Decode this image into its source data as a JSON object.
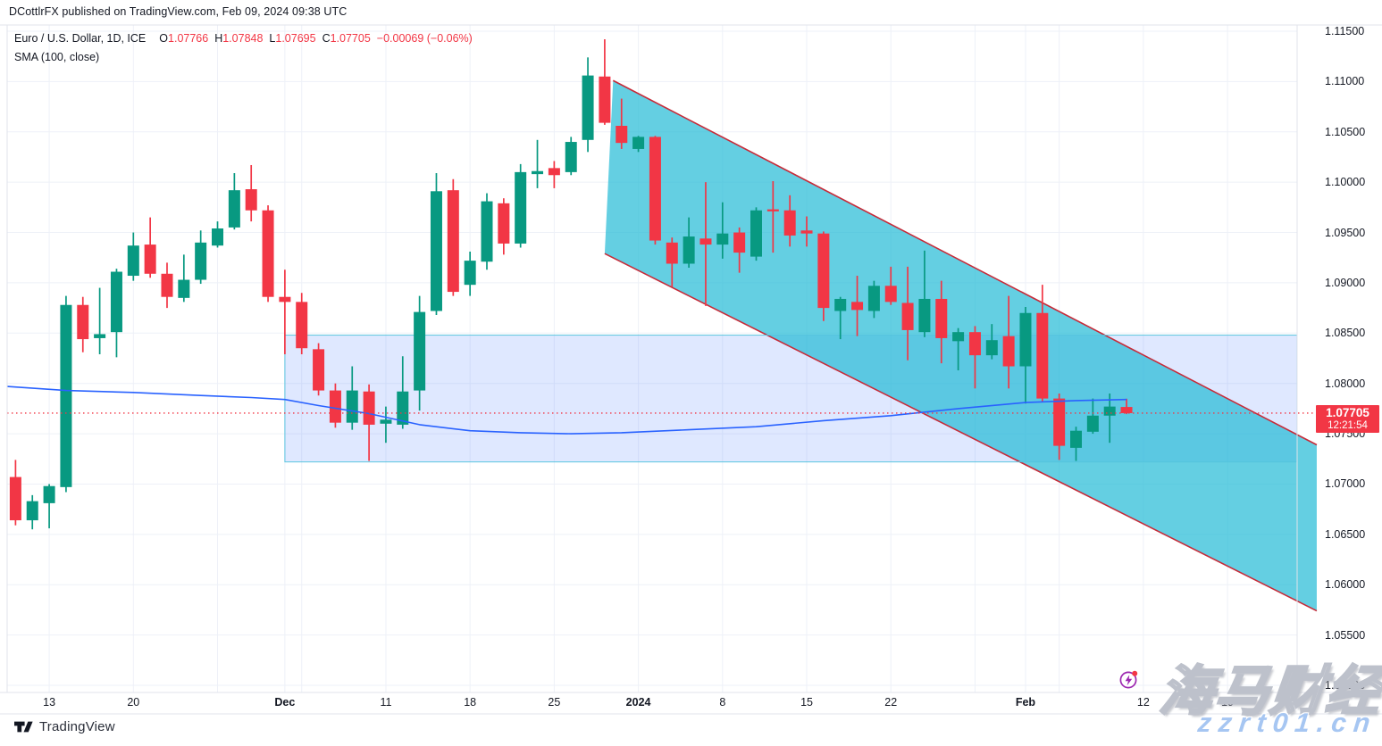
{
  "publish_bar": {
    "text": "DCottlrFX published on TradingView.com, Feb 09, 2024 09:38 UTC"
  },
  "legend": {
    "symbol": "Euro / U.S. Dollar, 1D, ICE",
    "ohlc": [
      {
        "k": "O",
        "v": "1.07766"
      },
      {
        "k": "H",
        "v": "1.07848"
      },
      {
        "k": "L",
        "v": "1.07695"
      },
      {
        "k": "C",
        "v": "1.07705"
      }
    ],
    "change": "−0.00069 (−0.06%)",
    "indicator": "SMA (100, close)"
  },
  "price_label": {
    "price": "1.07705",
    "countdown": "12:21:54"
  },
  "footer": {
    "brand": "TradingView"
  },
  "watermark": {
    "line1": "海马财经",
    "line2": "zzrt01.cn"
  },
  "colors": {
    "up": "#089981",
    "down": "#f23645",
    "sma": "#2962ff",
    "grid": "#eef1f8",
    "frame": "#e0e3eb",
    "axis_text": "#131722",
    "channel_fill": "rgba(34,187,214,0.70)",
    "channel_stroke": "#c62b39",
    "zone_fill": "rgba(41,98,255,0.15)",
    "zone_stroke": "rgba(84,196,221,0.95)",
    "price_line": "#f23645",
    "label_bg": "#f23645",
    "icon_purple": "#9c27b0",
    "dot_red": "#f23645"
  },
  "chart_data": {
    "type": "candlestick",
    "title": "Euro / U.S. Dollar, 1D, ICE",
    "symbol": "EUR/USD",
    "timeframe": "1D",
    "exchange": "ICE",
    "indicator": "SMA (100, close)",
    "y_axis": {
      "labels": [
        "1.11500",
        "1.11000",
        "1.10500",
        "1.10000",
        "1.09500",
        "1.09000",
        "1.08500",
        "1.08000",
        "1.07500",
        "1.07000",
        "1.06500",
        "1.06000",
        "1.05500",
        "1.05000"
      ],
      "min": 1.05,
      "max": 1.115,
      "step": 0.005
    },
    "x_axis": {
      "labels": [
        [
          "13",
          2
        ],
        [
          "20",
          7
        ],
        [
          "Dec",
          16
        ],
        [
          "11",
          22
        ],
        [
          "18",
          27
        ],
        [
          "25",
          32
        ],
        [
          "2024",
          37
        ],
        [
          "8",
          42
        ],
        [
          "15",
          47
        ],
        [
          "22",
          52
        ],
        [
          "Feb",
          60
        ],
        [
          "12",
          67
        ],
        [
          "19",
          72
        ]
      ]
    },
    "grid_week_indices": [
      2,
      7,
      12,
      16,
      17,
      22,
      27,
      32,
      37,
      42,
      47,
      52,
      57,
      60,
      62,
      67,
      72
    ],
    "candles": [
      [
        "Nov 9",
        1.0707,
        1.0724,
        1.0659,
        1.0664
      ],
      [
        "Nov 10",
        1.0664,
        1.0689,
        1.0655,
        1.0683
      ],
      [
        "Nov 13",
        1.0681,
        1.07,
        1.0656,
        1.0698
      ],
      [
        "Nov 14",
        1.0697,
        1.0887,
        1.0692,
        1.0878
      ],
      [
        "Nov 15",
        1.0878,
        1.0886,
        1.0831,
        1.0844
      ],
      [
        "Nov 16",
        1.0845,
        1.0895,
        1.0829,
        1.0849
      ],
      [
        "Nov 17",
        1.0851,
        1.0914,
        1.0826,
        1.0911
      ],
      [
        "Nov 20",
        1.0907,
        1.095,
        1.0902,
        1.0937
      ],
      [
        "Nov 21",
        1.0938,
        1.0965,
        1.0905,
        1.0909
      ],
      [
        "Nov 22",
        1.0909,
        1.092,
        1.0875,
        1.0886
      ],
      [
        "Nov 23",
        1.0885,
        1.0928,
        1.0881,
        1.0903
      ],
      [
        "Nov 24",
        1.0903,
        1.0952,
        1.0899,
        1.094
      ],
      [
        "Nov 27",
        1.0937,
        1.0961,
        1.0935,
        1.0954
      ],
      [
        "Nov 28",
        1.0955,
        1.1009,
        1.0953,
        1.0992
      ],
      [
        "Nov 29",
        1.0993,
        1.1017,
        1.0961,
        1.0972
      ],
      [
        "Nov 30",
        1.0972,
        1.0977,
        1.0881,
        1.0886
      ],
      [
        "Dec 1",
        1.0886,
        1.0913,
        1.0829,
        1.0881
      ],
      [
        "Dec 4",
        1.0881,
        1.089,
        1.0829,
        1.0835
      ],
      [
        "Dec 5",
        1.0834,
        1.084,
        1.0788,
        1.0793
      ],
      [
        "Dec 6",
        1.0793,
        1.08,
        1.0756,
        1.0761
      ],
      [
        "Dec 7",
        1.0761,
        1.0817,
        1.0754,
        1.0793
      ],
      [
        "Dec 8",
        1.0792,
        1.0799,
        1.0723,
        1.0759
      ],
      [
        "Dec 11",
        1.076,
        1.0777,
        1.0741,
        1.0764
      ],
      [
        "Dec 12",
        1.0759,
        1.0827,
        1.0755,
        1.0792
      ],
      [
        "Dec 13",
        1.0793,
        1.0887,
        1.0773,
        1.0871
      ],
      [
        "Dec 14",
        1.0872,
        1.1009,
        1.0868,
        1.0991
      ],
      [
        "Dec 15",
        1.0992,
        1.1003,
        1.0887,
        1.0891
      ],
      [
        "Dec 18",
        1.0898,
        1.0931,
        1.0887,
        1.0922
      ],
      [
        "Dec 19",
        1.0921,
        1.0989,
        1.0913,
        1.0981
      ],
      [
        "Dec 20",
        1.0979,
        1.0984,
        1.0928,
        1.0939
      ],
      [
        "Dec 21",
        1.0939,
        1.1018,
        1.0935,
        1.101
      ],
      [
        "Dec 22",
        1.1008,
        1.1042,
        1.0994,
        1.1011
      ],
      [
        "Dec 25",
        1.1014,
        1.1021,
        1.0994,
        1.1007
      ],
      [
        "Dec 26",
        1.101,
        1.1045,
        1.1007,
        1.104
      ],
      [
        "Dec 27",
        1.1042,
        1.1124,
        1.103,
        1.1106
      ],
      [
        "Dec 28",
        1.1105,
        1.1142,
        1.1057,
        1.1059
      ],
      [
        "Dec 29",
        1.1056,
        1.1083,
        1.1033,
        1.1039
      ],
      [
        "Jan 1",
        1.1033,
        1.1046,
        1.103,
        1.1045
      ],
      [
        "Jan 2",
        1.1045,
        1.1046,
        1.0938,
        1.0942
      ],
      [
        "Jan 3",
        1.094,
        1.0945,
        1.0896,
        1.0919
      ],
      [
        "Jan 4",
        1.0919,
        1.0965,
        1.0915,
        1.0946
      ],
      [
        "Jan 5",
        1.0944,
        1.1,
        1.0877,
        1.0938
      ],
      [
        "Jan 8",
        1.0938,
        1.098,
        1.0924,
        1.0949
      ],
      [
        "Jan 9",
        1.095,
        1.0955,
        1.091,
        1.093
      ],
      [
        "Jan 10",
        1.0926,
        1.0975,
        1.0922,
        1.0972
      ],
      [
        "Jan 11",
        1.0973,
        1.1001,
        1.093,
        1.0971
      ],
      [
        "Jan 12",
        1.0972,
        1.0987,
        1.0936,
        1.0947
      ],
      [
        "Jan 15",
        1.0952,
        1.0966,
        1.0936,
        1.0949
      ],
      [
        "Jan 16",
        1.0949,
        1.0951,
        1.0862,
        1.0875
      ],
      [
        "Jan 17",
        1.0872,
        1.0886,
        1.0844,
        1.0884
      ],
      [
        "Jan 18",
        1.0881,
        1.0907,
        1.0847,
        1.0873
      ],
      [
        "Jan 19",
        1.0872,
        1.0902,
        1.0865,
        1.0897
      ],
      [
        "Jan 22",
        1.0897,
        1.0916,
        1.0878,
        1.0881
      ],
      [
        "Jan 23",
        1.088,
        1.0916,
        1.0823,
        1.0853
      ],
      [
        "Jan 24",
        1.0851,
        1.0932,
        1.0846,
        1.0884
      ],
      [
        "Jan 25",
        1.0884,
        1.0902,
        1.082,
        1.0845
      ],
      [
        "Jan 26",
        1.0842,
        1.0855,
        1.0813,
        1.0851
      ],
      [
        "Jan 29",
        1.0851,
        1.0857,
        1.0795,
        1.0828
      ],
      [
        "Jan 30",
        1.0828,
        1.0859,
        1.0824,
        1.0843
      ],
      [
        "Jan 31",
        1.0847,
        1.0887,
        1.0795,
        1.0817
      ],
      [
        "Feb 1",
        1.0817,
        1.0876,
        1.078,
        1.087
      ],
      [
        "Feb 2",
        1.087,
        1.0898,
        1.0782,
        1.0785
      ],
      [
        "Feb 5",
        1.0785,
        1.079,
        1.0724,
        1.0738
      ],
      [
        "Feb 6",
        1.0736,
        1.0757,
        1.0723,
        1.0753
      ],
      [
        "Feb 7",
        1.0752,
        1.0785,
        1.075,
        1.0768
      ],
      [
        "Feb 8",
        1.0768,
        1.079,
        1.0741,
        1.0777
      ],
      [
        "Feb 9",
        1.07766,
        1.07848,
        1.07695,
        1.07705
      ]
    ],
    "sma": {
      "name": "SMA 100",
      "points": [
        [
          -0.5,
          1.0797
        ],
        [
          3,
          1.0793
        ],
        [
          7,
          1.0791
        ],
        [
          11,
          1.0788
        ],
        [
          14,
          1.0786
        ],
        [
          16,
          1.0784
        ],
        [
          18,
          1.0778
        ],
        [
          21,
          1.077
        ],
        [
          24,
          1.0759
        ],
        [
          27,
          1.0753
        ],
        [
          30,
          1.0751
        ],
        [
          33,
          1.075
        ],
        [
          36,
          1.0751
        ],
        [
          40,
          1.0754
        ],
        [
          44,
          1.0757
        ],
        [
          48,
          1.0763
        ],
        [
          52,
          1.0768
        ],
        [
          56,
          1.0775
        ],
        [
          60,
          1.0781
        ],
        [
          63,
          1.0783
        ],
        [
          66,
          1.0784
        ]
      ]
    },
    "drawings": {
      "channel": {
        "upper": [
          [
            35.5,
            1.1101
          ],
          [
            77.3,
            1.0739
          ]
        ],
        "lower": [
          [
            35.0,
            1.0929
          ],
          [
            77.3,
            1.0574
          ]
        ]
      },
      "rectangle": {
        "i1": 16.0,
        "i2": 76.13,
        "p_top": 1.0848,
        "p_bottom": 1.0722
      },
      "price_line": 1.07705
    }
  }
}
